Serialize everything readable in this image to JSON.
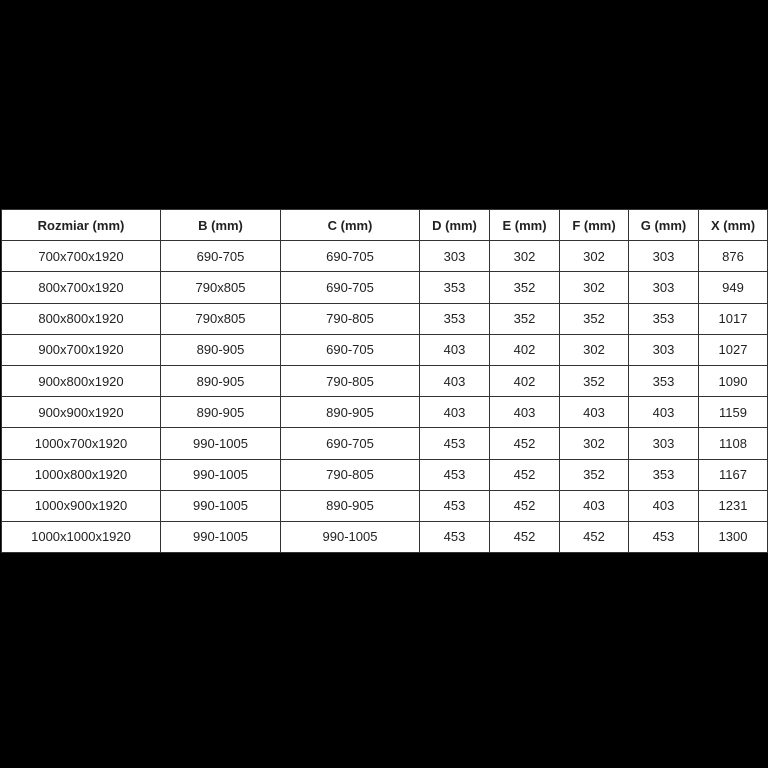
{
  "table": {
    "headers": [
      "Rozmiar (mm)",
      "B (mm)",
      "C (mm)",
      "D (mm)",
      "E (mm)",
      "F (mm)",
      "G (mm)",
      "X (mm)"
    ],
    "rows": [
      [
        "700x700x1920",
        "690-705",
        "690-705",
        "303",
        "302",
        "302",
        "303",
        "876"
      ],
      [
        "800x700x1920",
        "790x805",
        "690-705",
        "353",
        "352",
        "302",
        "303",
        "949"
      ],
      [
        "800x800x1920",
        "790x805",
        "790-805",
        "353",
        "352",
        "352",
        "353",
        "1017"
      ],
      [
        "900x700x1920",
        "890-905",
        "690-705",
        "403",
        "402",
        "302",
        "303",
        "1027"
      ],
      [
        "900x800x1920",
        "890-905",
        "790-805",
        "403",
        "402",
        "352",
        "353",
        "1090"
      ],
      [
        "900x900x1920",
        "890-905",
        "890-905",
        "403",
        "403",
        "403",
        "403",
        "1159"
      ],
      [
        "1000x700x1920",
        "990-1005",
        "690-705",
        "453",
        "452",
        "302",
        "303",
        "1108"
      ],
      [
        "1000x800x1920",
        "990-1005",
        "790-805",
        "453",
        "452",
        "352",
        "353",
        "1167"
      ],
      [
        "1000x900x1920",
        "990-1005",
        "890-905",
        "453",
        "452",
        "403",
        "403",
        "1231"
      ],
      [
        "1000x1000x1920",
        "990-1005",
        "990-1005",
        "453",
        "452",
        "452",
        "453",
        "1300"
      ]
    ]
  }
}
